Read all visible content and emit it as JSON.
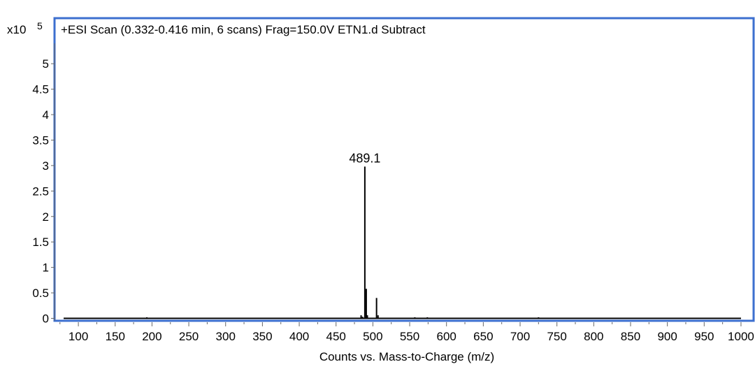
{
  "chart_data": {
    "type": "bar",
    "title": "+ESI Scan (0.332-0.416 min, 6 scans) Frag=150.0V ETN1.d  Subtract",
    "xlabel": "Counts vs. Mass-to-Charge (m/z)",
    "ylabel": "",
    "y_multiplier_base": "x10",
    "y_multiplier_exponent": "5",
    "xlim": [
      70,
      1010
    ],
    "ylim": [
      0,
      5.4
    ],
    "x_ticks": [
      100,
      150,
      200,
      250,
      300,
      350,
      400,
      450,
      500,
      550,
      600,
      650,
      700,
      750,
      800,
      850,
      900,
      950,
      1000
    ],
    "x_tick_labels": [
      "100",
      "150",
      "200",
      "250",
      "300",
      "350",
      "400",
      "450",
      "500",
      "550",
      "600",
      "650",
      "700",
      "750",
      "800",
      "850",
      "900",
      "950",
      "1000"
    ],
    "y_ticks": [
      0,
      0.5,
      1,
      1.5,
      2,
      2.5,
      3,
      3.5,
      4,
      4.5,
      5
    ],
    "y_tick_labels": [
      "0",
      "0.5",
      "1",
      "1.5",
      "2",
      "2.5",
      "3",
      "3.5",
      "4",
      "4.5",
      "5"
    ],
    "baseline_range": [
      80,
      1000
    ],
    "peaks": [
      {
        "mz": 193.0,
        "intensity": 0.02
      },
      {
        "mz": 484.0,
        "intensity": 0.06
      },
      {
        "mz": 486.0,
        "intensity": 0.03
      },
      {
        "mz": 489.1,
        "intensity": 2.98
      },
      {
        "mz": 491.0,
        "intensity": 0.58
      },
      {
        "mz": 492.5,
        "intensity": 0.06
      },
      {
        "mz": 505.0,
        "intensity": 0.4
      },
      {
        "mz": 507.0,
        "intensity": 0.06
      },
      {
        "mz": 557.0,
        "intensity": 0.02
      },
      {
        "mz": 574.0,
        "intensity": 0.02
      },
      {
        "mz": 725.0,
        "intensity": 0.02
      }
    ],
    "annotations": [
      {
        "text": "489.1",
        "x": 489.1,
        "y": 2.98
      }
    ],
    "grid": false,
    "legend": "none",
    "colors": {
      "peaks": "#000000",
      "frame": "#3c6fcf",
      "axis": "#666666"
    }
  }
}
